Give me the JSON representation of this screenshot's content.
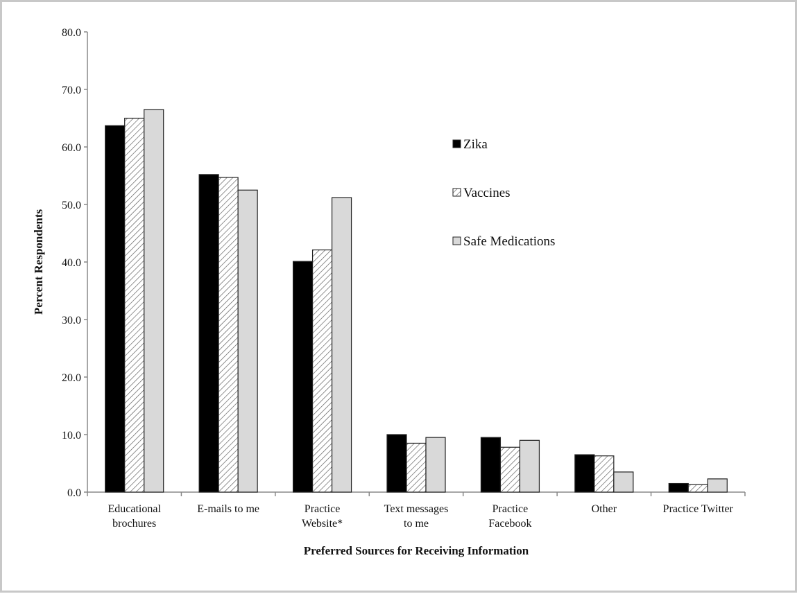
{
  "chart_data": {
    "type": "bar",
    "title": "",
    "xlabel": "Preferred Sources for Receiving Information",
    "ylabel": "Percent Respondents",
    "ylim": [
      0,
      80
    ],
    "yticks": [
      "0.0",
      "10.0",
      "20.0",
      "30.0",
      "40.0",
      "50.0",
      "60.0",
      "70.0",
      "80.0"
    ],
    "grid": false,
    "legend_position": "upper-right",
    "categories": [
      [
        "Educational",
        "brochures"
      ],
      [
        "E-mails to me"
      ],
      [
        "Practice",
        "Website*"
      ],
      [
        "Text messages",
        "to me"
      ],
      [
        "Practice",
        "Facebook"
      ],
      [
        "Other"
      ],
      [
        "Practice Twitter"
      ]
    ],
    "series": [
      {
        "name": "Zika",
        "fill": "#000000",
        "pattern": "solid",
        "values": [
          63.7,
          55.2,
          40.1,
          10.0,
          9.5,
          6.5,
          1.5
        ]
      },
      {
        "name": "Vaccines",
        "fill": "#ffffff",
        "pattern": "diagonal-hatch",
        "values": [
          65.0,
          54.7,
          42.1,
          8.5,
          7.8,
          6.3,
          1.3
        ]
      },
      {
        "name": "Safe Medications",
        "fill": "#d9d9d9",
        "pattern": "solid",
        "values": [
          66.5,
          52.5,
          51.2,
          9.5,
          9.0,
          3.5,
          2.3
        ]
      }
    ]
  }
}
